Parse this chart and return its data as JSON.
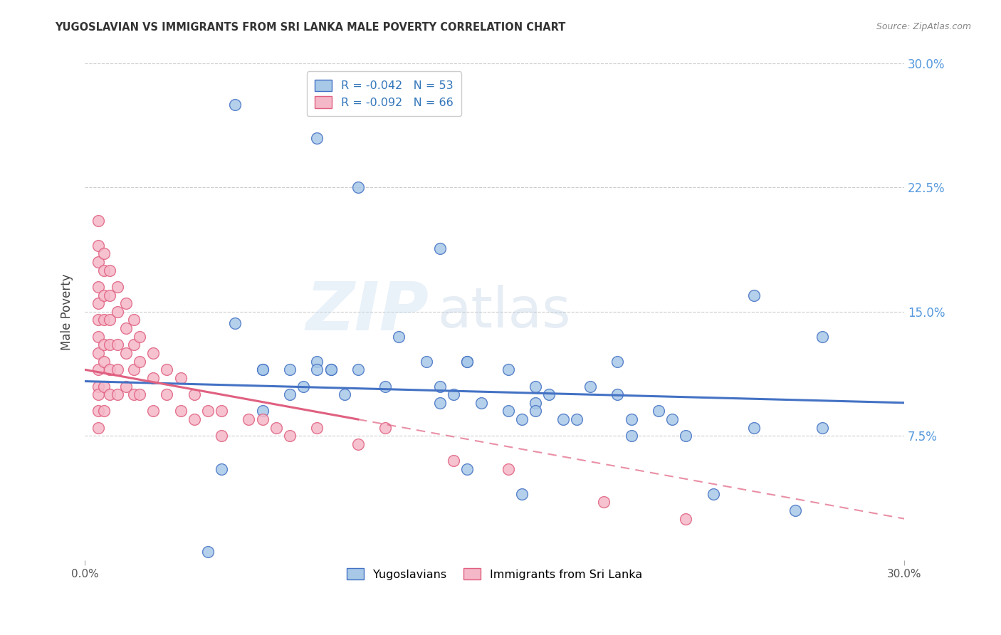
{
  "title": "YUGOSLAVIAN VS IMMIGRANTS FROM SRI LANKA MALE POVERTY CORRELATION CHART",
  "source": "Source: ZipAtlas.com",
  "ylabel": "Male Poverty",
  "ytick_labels": [
    "7.5%",
    "15.0%",
    "22.5%",
    "30.0%"
  ],
  "ytick_values": [
    0.075,
    0.15,
    0.225,
    0.3
  ],
  "xlim": [
    0.0,
    0.3
  ],
  "ylim": [
    0.0,
    0.3
  ],
  "legend_blue_R": "R = -0.042",
  "legend_blue_N": "N = 53",
  "legend_pink_R": "R = -0.092",
  "legend_pink_N": "N = 66",
  "blue_color": "#a8c8e8",
  "pink_color": "#f5b8c8",
  "blue_line_color": "#4472c4",
  "pink_line_color": "#e06080",
  "watermark_zip": "ZIP",
  "watermark_atlas": "atlas",
  "blue_x": [
    0.055,
    0.085,
    0.1,
    0.13,
    0.055,
    0.065,
    0.075,
    0.085,
    0.09,
    0.115,
    0.13,
    0.14,
    0.155,
    0.165,
    0.185,
    0.195,
    0.195,
    0.21,
    0.245,
    0.27,
    0.045,
    0.065,
    0.065,
    0.075,
    0.08,
    0.085,
    0.09,
    0.095,
    0.1,
    0.11,
    0.125,
    0.13,
    0.135,
    0.14,
    0.145,
    0.155,
    0.16,
    0.165,
    0.165,
    0.175,
    0.18,
    0.2,
    0.2,
    0.215,
    0.22,
    0.245,
    0.27,
    0.05,
    0.14,
    0.16,
    0.23,
    0.26,
    0.17
  ],
  "blue_y": [
    0.275,
    0.255,
    0.225,
    0.188,
    0.143,
    0.115,
    0.115,
    0.12,
    0.115,
    0.135,
    0.105,
    0.12,
    0.115,
    0.105,
    0.105,
    0.12,
    0.1,
    0.09,
    0.16,
    0.135,
    0.005,
    0.115,
    0.09,
    0.1,
    0.105,
    0.115,
    0.115,
    0.1,
    0.115,
    0.105,
    0.12,
    0.095,
    0.1,
    0.12,
    0.095,
    0.09,
    0.085,
    0.095,
    0.09,
    0.085,
    0.085,
    0.075,
    0.085,
    0.085,
    0.075,
    0.08,
    0.08,
    0.055,
    0.055,
    0.04,
    0.04,
    0.03,
    0.1
  ],
  "pink_x": [
    0.005,
    0.005,
    0.005,
    0.005,
    0.005,
    0.005,
    0.005,
    0.005,
    0.005,
    0.005,
    0.005,
    0.005,
    0.007,
    0.007,
    0.007,
    0.007,
    0.007,
    0.007,
    0.007,
    0.007,
    0.009,
    0.009,
    0.009,
    0.009,
    0.009,
    0.009,
    0.012,
    0.012,
    0.012,
    0.012,
    0.012,
    0.015,
    0.015,
    0.015,
    0.015,
    0.018,
    0.018,
    0.018,
    0.018,
    0.02,
    0.02,
    0.02,
    0.025,
    0.025,
    0.025,
    0.03,
    0.03,
    0.035,
    0.035,
    0.04,
    0.04,
    0.045,
    0.05,
    0.05,
    0.06,
    0.065,
    0.07,
    0.075,
    0.085,
    0.1,
    0.11,
    0.135,
    0.155,
    0.19,
    0.22,
    0.005
  ],
  "pink_y": [
    0.19,
    0.18,
    0.165,
    0.155,
    0.145,
    0.135,
    0.125,
    0.115,
    0.105,
    0.1,
    0.09,
    0.08,
    0.185,
    0.175,
    0.16,
    0.145,
    0.13,
    0.12,
    0.105,
    0.09,
    0.175,
    0.16,
    0.145,
    0.13,
    0.115,
    0.1,
    0.165,
    0.15,
    0.13,
    0.115,
    0.1,
    0.155,
    0.14,
    0.125,
    0.105,
    0.145,
    0.13,
    0.115,
    0.1,
    0.135,
    0.12,
    0.1,
    0.125,
    0.11,
    0.09,
    0.115,
    0.1,
    0.11,
    0.09,
    0.1,
    0.085,
    0.09,
    0.09,
    0.075,
    0.085,
    0.085,
    0.08,
    0.075,
    0.08,
    0.07,
    0.08,
    0.06,
    0.055,
    0.035,
    0.025,
    0.205
  ]
}
